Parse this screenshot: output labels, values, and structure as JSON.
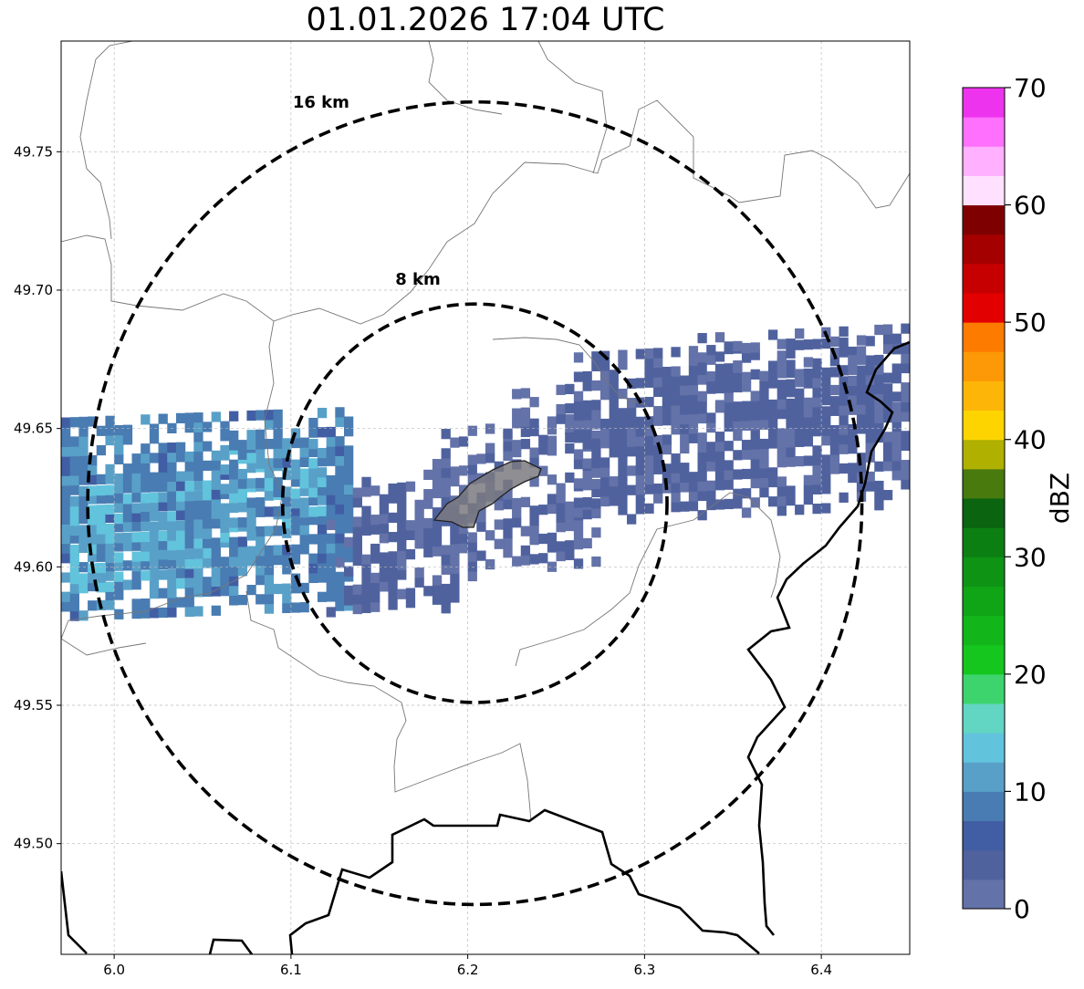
{
  "title": "01.01.2026 17:04 UTC",
  "map": {
    "extent": {
      "lon": [
        5.97,
        6.45
      ],
      "lat": [
        49.46,
        49.79
      ]
    },
    "center": {
      "lon": 6.204,
      "lat": 49.623
    },
    "x_ticks": [
      {
        "value": 6.0,
        "label": "6.0"
      },
      {
        "value": 6.1,
        "label": "6.1"
      },
      {
        "value": 6.2,
        "label": "6.2"
      },
      {
        "value": 6.3,
        "label": "6.3"
      },
      {
        "value": 6.4,
        "label": "6.4"
      }
    ],
    "y_ticks": [
      {
        "value": 49.5,
        "label": "49.50"
      },
      {
        "value": 49.55,
        "label": "49.55"
      },
      {
        "value": 49.6,
        "label": "49.60"
      },
      {
        "value": 49.65,
        "label": "49.65"
      },
      {
        "value": 49.7,
        "label": "49.70"
      },
      {
        "value": 49.75,
        "label": "49.75"
      }
    ],
    "gridlines": true,
    "range_rings": [
      {
        "label": "8 km",
        "radius_lat": 0.072,
        "label_lon": 6.159,
        "label_lat": 49.702
      },
      {
        "label": "16 km",
        "radius_lat": 0.145,
        "label_lon": 6.101,
        "label_lat": 49.766
      }
    ]
  },
  "colorbar": {
    "label": "dBZ",
    "min": 0,
    "max": 70,
    "ticks": [
      {
        "value": 0,
        "label": "0"
      },
      {
        "value": 10,
        "label": "10"
      },
      {
        "value": 20,
        "label": "20"
      },
      {
        "value": 30,
        "label": "30"
      },
      {
        "value": 40,
        "label": "40"
      },
      {
        "value": 50,
        "label": "50"
      },
      {
        "value": 60,
        "label": "60"
      },
      {
        "value": 70,
        "label": "70"
      }
    ],
    "colors": [
      "#6372a8",
      "#50629e",
      "#415ea4",
      "#497cb2",
      "#59a0c8",
      "#62c3dc",
      "#62d6c3",
      "#3dd46e",
      "#14c61e",
      "#12b61a",
      "#10a417",
      "#0e9314",
      "#0c7f12",
      "#0a6410",
      "#487a0e",
      "#b0b000",
      "#fed400",
      "#fdb608",
      "#fd9806",
      "#fd7c00",
      "#e30000",
      "#c60000",
      "#a50000",
      "#7e0000",
      "#ffe0ff",
      "#ffb0ff",
      "#ff70ff",
      "#ee33ee"
    ]
  },
  "radar": {
    "cell_lon": 0.005,
    "cell_lat": 0.0035,
    "bands": [
      {
        "lon0": 5.97,
        "lon1": 6.13,
        "latc": 49.62,
        "slope": 0.08,
        "half": 0.036,
        "dbz": 9,
        "dens": 0.95
      },
      {
        "lon0": 5.975,
        "lon1": 6.05,
        "latc": 49.612,
        "slope": 0.1,
        "half": 0.018,
        "dbz": 13,
        "dens": 0.6
      },
      {
        "lon0": 6.06,
        "lon1": 6.115,
        "latc": 49.627,
        "slope": 0.15,
        "half": 0.018,
        "dbz": 12,
        "dens": 0.55
      },
      {
        "lon0": 6.12,
        "lon1": 6.19,
        "latc": 49.607,
        "slope": 0.25,
        "half": 0.025,
        "dbz": 3,
        "dens": 0.8
      },
      {
        "lon0": 6.18,
        "lon1": 6.27,
        "latc": 49.625,
        "slope": 0.25,
        "half": 0.028,
        "dbz": 2,
        "dens": 0.7
      },
      {
        "lon0": 6.22,
        "lon1": 6.26,
        "latc": 49.655,
        "slope": 0.2,
        "half": 0.012,
        "dbz": 2,
        "dens": 0.5
      },
      {
        "lon0": 6.26,
        "lon1": 6.45,
        "latc": 49.648,
        "slope": 0.12,
        "half": 0.03,
        "dbz": 3,
        "dens": 0.82
      },
      {
        "lon0": 6.33,
        "lon1": 6.45,
        "latc": 49.673,
        "slope": 0.1,
        "half": 0.013,
        "dbz": 2,
        "dens": 0.7
      }
    ]
  }
}
